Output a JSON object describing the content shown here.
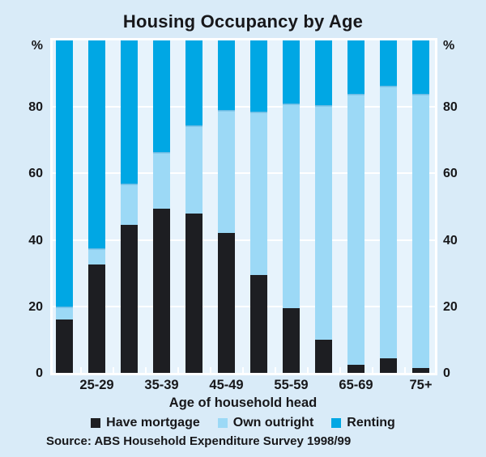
{
  "title": "Housing Occupancy by Age",
  "y_axis": {
    "unit": "%",
    "ticks": [
      0,
      20,
      40,
      60,
      80
    ],
    "max": 100
  },
  "x_axis": {
    "label": "Age of household head"
  },
  "legend": [
    {
      "label": "Have mortgage",
      "color": "#1d1e22"
    },
    {
      "label": "Own outright",
      "color": "#9cd9f6"
    },
    {
      "label": "Renting",
      "color": "#00a7e4"
    }
  ],
  "source": "Source: ABS Household Expenditure Survey 1998/99",
  "colors": {
    "background": "#d9ebf8",
    "plot_background": "#e7f3fc",
    "gridline": "#ffffff",
    "text": "#17171a"
  },
  "chart_data": {
    "type": "bar",
    "stacked": true,
    "title": "Housing Occupancy by Age",
    "xlabel": "Age of household head",
    "ylabel_unit": "%",
    "ylim": [
      0,
      100
    ],
    "gridlines": [
      20,
      40,
      60,
      80
    ],
    "legend_position": "bottom",
    "categories": [
      "",
      "25-29",
      "",
      "35-39",
      "",
      "45-49",
      "",
      "55-59",
      "",
      "65-69",
      "",
      "75+"
    ],
    "series": [
      {
        "name": "Have mortgage",
        "color": "#1d1e22",
        "values": [
          16,
          32.5,
          44.5,
          49.5,
          48,
          42,
          29.5,
          19.5,
          10,
          2.5,
          4.5,
          1.5
        ]
      },
      {
        "name": "Own outright",
        "color": "#9cd9f6",
        "values": [
          4,
          5,
          12.5,
          17,
          26.5,
          37,
          49,
          61.5,
          70.5,
          81.5,
          82,
          82.5
        ]
      },
      {
        "name": "Renting",
        "color": "#00a7e4",
        "values": [
          80,
          62.5,
          43,
          33.5,
          25.5,
          21,
          21.5,
          19,
          19.5,
          16,
          13.5,
          16
        ]
      }
    ]
  }
}
